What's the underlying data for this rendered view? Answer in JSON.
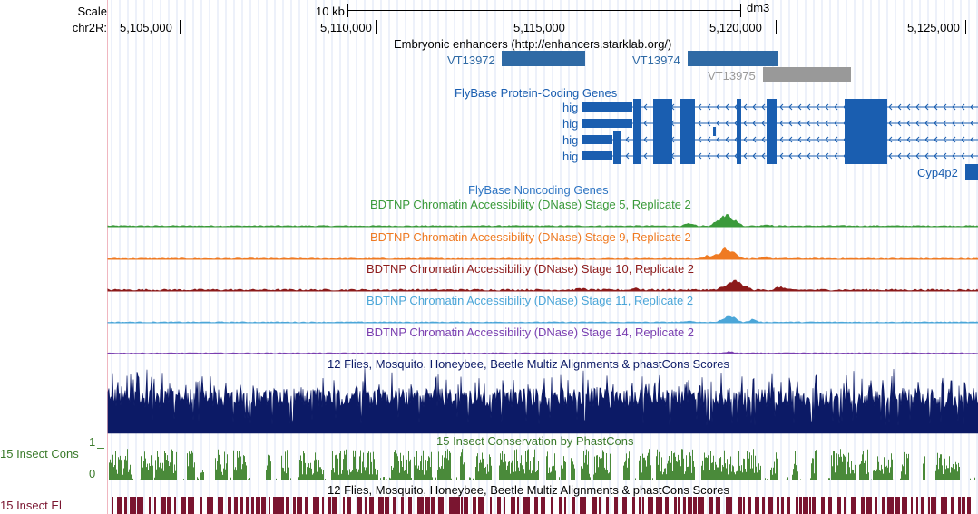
{
  "ruler": {
    "scale_label": "Scale",
    "chrom_label": "chr2R:",
    "scale_bar_label": "10 kb",
    "assembly": "dm3",
    "positions": [
      "5,105,000",
      "5,110,000",
      "5,115,000",
      "5,120,000",
      "5,125,000"
    ]
  },
  "tracks": {
    "enhancers": {
      "title": "Embryonic enhancers (http://enhancers.starklab.org/)",
      "items": [
        "VT13972",
        "VT13974",
        "VT13975"
      ],
      "color": "#2f6aa5",
      "faded_color": "#999999"
    },
    "protein_genes": {
      "title": "FlyBase Protein-Coding Genes",
      "transcripts": [
        "hig",
        "hig",
        "hig",
        "hig"
      ],
      "other_gene": "Cyp4p2",
      "color": "#1a5eb0"
    },
    "noncoding": {
      "title": "FlyBase Noncoding Genes",
      "color": "#2e75c3"
    },
    "dnase": [
      {
        "title": "BDTNP Chromatin Accessibility (DNase) Stage 5, Replicate 2",
        "color": "#3a9a3a"
      },
      {
        "title": "BDTNP Chromatin Accessibility (DNase) Stage 9, Replicate 2",
        "color": "#ef7a22"
      },
      {
        "title": "BDTNP Chromatin Accessibility (DNase) Stage 10, Replicate 2",
        "color": "#8c1a1a"
      },
      {
        "title": "BDTNP Chromatin Accessibility (DNase) Stage 11, Replicate 2",
        "color": "#4ba6d8"
      },
      {
        "title": "BDTNP Chromatin Accessibility (DNase) Stage 14, Replicate 2",
        "color": "#7a3fb0"
      }
    ],
    "multiz": {
      "title": "12 Flies, Mosquito, Honeybee, Beetle Multiz Alignments & phastCons Scores",
      "color": "#0c1a66"
    },
    "phastcons": {
      "title": "15 Insect Conservation by PhastCons",
      "side_label": "15 Insect Cons",
      "axis_max": "1",
      "axis_min": "0",
      "color": "#4a8a3a",
      "label_color": "#3a7a2a"
    },
    "elements": {
      "title": "12 Flies, Mosquito, Honeybee, Beetle Multiz Alignments & phastCons Scores",
      "side_label": "15 Insect El",
      "color": "#7a1530"
    }
  }
}
